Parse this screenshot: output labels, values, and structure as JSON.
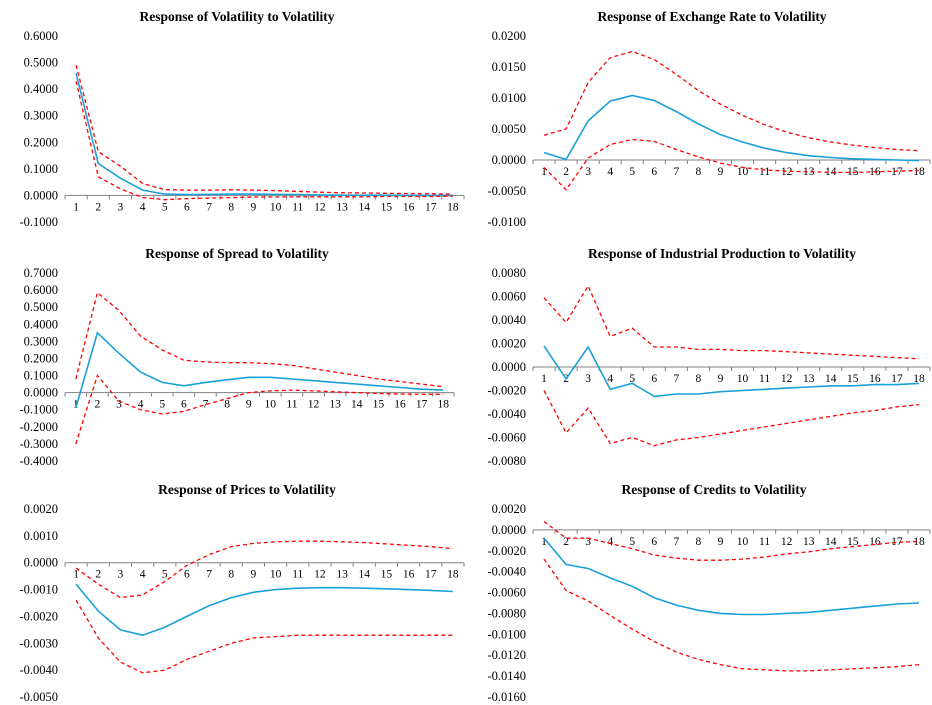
{
  "colors": {
    "response": "#1aa0d8",
    "band": "#ff0000",
    "axis": "#808080"
  },
  "chart_data": [
    {
      "type": "line",
      "title": "Response of  Volatility  to Volatility",
      "x": [
        1,
        2,
        3,
        4,
        5,
        6,
        7,
        8,
        9,
        10,
        11,
        12,
        13,
        14,
        15,
        16,
        17,
        18
      ],
      "ylim": [
        -0.1,
        0.6
      ],
      "yticks": [
        -0.1,
        0,
        0.1,
        0.2,
        0.3,
        0.4,
        0.5,
        0.6
      ],
      "ytick_labels": [
        "-0.1000",
        "0.0000",
        "0.1000",
        "0.2000",
        "0.3000",
        "0.4000",
        "0.5000",
        "0.6000"
      ],
      "legend": "none",
      "series": [
        {
          "role": "response",
          "values": [
            0.46,
            0.12,
            0.065,
            0.02,
            0.005,
            0.003,
            0.004,
            0.005,
            0.005,
            0.004,
            0.003,
            0.002,
            0.001,
            0.001,
            0.001,
            0.0,
            0.0,
            0.0
          ]
        },
        {
          "role": "upper",
          "values": [
            0.49,
            0.165,
            0.11,
            0.045,
            0.022,
            0.02,
            0.02,
            0.021,
            0.02,
            0.018,
            0.015,
            0.012,
            0.01,
            0.009,
            0.008,
            0.007,
            0.006,
            0.005
          ]
        },
        {
          "role": "lower",
          "values": [
            0.43,
            0.07,
            0.025,
            -0.008,
            -0.016,
            -0.012,
            -0.01,
            -0.008,
            -0.006,
            -0.006,
            -0.005,
            -0.005,
            -0.005,
            -0.005,
            -0.004,
            -0.004,
            -0.004,
            -0.003
          ]
        }
      ]
    },
    {
      "type": "line",
      "title": "Response of  Exchange Rate  to Volatility",
      "x": [
        1,
        2,
        3,
        4,
        5,
        6,
        7,
        8,
        9,
        10,
        11,
        12,
        13,
        14,
        15,
        16,
        17,
        18
      ],
      "ylim": [
        -0.01,
        0.02
      ],
      "yticks": [
        -0.01,
        -0.005,
        0,
        0.005,
        0.01,
        0.015,
        0.02
      ],
      "ytick_labels": [
        "-0.0100",
        "-0.0050",
        "0.0000",
        "0.0050",
        "0.0100",
        "0.0150",
        "0.0200"
      ],
      "legend": "none",
      "series": [
        {
          "role": "response",
          "values": [
            0.0012,
            0.0001,
            0.0063,
            0.0095,
            0.0104,
            0.0096,
            0.0078,
            0.0058,
            0.0041,
            0.0029,
            0.0019,
            0.0012,
            0.0007,
            0.0004,
            0.0002,
            0.0001,
            0.0,
            -0.0001
          ]
        },
        {
          "role": "upper",
          "values": [
            0.004,
            0.005,
            0.0125,
            0.0165,
            0.0175,
            0.0162,
            0.0138,
            0.0112,
            0.009,
            0.0072,
            0.0057,
            0.0045,
            0.0036,
            0.0029,
            0.0024,
            0.002,
            0.0017,
            0.0015
          ]
        },
        {
          "role": "lower",
          "values": [
            -0.0012,
            -0.0048,
            0.0003,
            0.0025,
            0.0033,
            0.003,
            0.0017,
            0.0005,
            -0.0005,
            -0.0012,
            -0.0016,
            -0.0018,
            -0.0019,
            -0.002,
            -0.002,
            -0.0019,
            -0.0018,
            -0.0017
          ]
        }
      ]
    },
    {
      "type": "line",
      "title": "Response of  Spread to  Volatility",
      "x": [
        1,
        2,
        3,
        4,
        5,
        6,
        7,
        8,
        9,
        10,
        11,
        12,
        13,
        14,
        15,
        16,
        17,
        18
      ],
      "ylim": [
        -0.4,
        0.7
      ],
      "yticks": [
        -0.4,
        -0.3,
        -0.2,
        -0.1,
        0,
        0.1,
        0.2,
        0.3,
        0.4,
        0.5,
        0.6,
        0.7
      ],
      "ytick_labels": [
        "-0.4000",
        "-0.3000",
        "-0.2000",
        "-0.1000",
        "0.0000",
        "0.1000",
        "0.2000",
        "0.3000",
        "0.4000",
        "0.5000",
        "0.6000",
        "0.7000"
      ],
      "legend": "none",
      "series": [
        {
          "role": "response",
          "values": [
            -0.09,
            0.35,
            0.23,
            0.12,
            0.06,
            0.04,
            0.06,
            0.075,
            0.09,
            0.09,
            0.08,
            0.07,
            0.06,
            0.05,
            0.04,
            0.03,
            0.02,
            0.015
          ]
        },
        {
          "role": "upper",
          "values": [
            0.08,
            0.585,
            0.48,
            0.33,
            0.25,
            0.19,
            0.18,
            0.175,
            0.175,
            0.17,
            0.16,
            0.14,
            0.12,
            0.1,
            0.08,
            0.065,
            0.05,
            0.035
          ]
        },
        {
          "role": "lower",
          "values": [
            -0.3,
            0.1,
            -0.05,
            -0.1,
            -0.125,
            -0.11,
            -0.07,
            -0.035,
            0.0,
            0.01,
            0.015,
            0.01,
            0.005,
            0.0,
            -0.005,
            -0.008,
            -0.01,
            -0.01
          ]
        }
      ]
    },
    {
      "type": "line",
      "title": "Response of  Industrial Production to Volatility",
      "x": [
        1,
        2,
        3,
        4,
        5,
        6,
        7,
        8,
        9,
        10,
        11,
        12,
        13,
        14,
        15,
        16,
        17,
        18
      ],
      "ylim": [
        -0.008,
        0.008
      ],
      "yticks": [
        -0.008,
        -0.006,
        -0.004,
        -0.002,
        0,
        0.002,
        0.004,
        0.006,
        0.008
      ],
      "ytick_labels": [
        "-0.0080",
        "-0.0060",
        "-0.0040",
        "-0.0020",
        "0.0000",
        "0.0020",
        "0.0040",
        "0.0060",
        "0.0080"
      ],
      "legend": "none",
      "series": [
        {
          "role": "response",
          "values": [
            0.0018,
            -0.001,
            0.0017,
            -0.0019,
            -0.0014,
            -0.0025,
            -0.0023,
            -0.0023,
            -0.0021,
            -0.002,
            -0.0019,
            -0.0018,
            -0.0017,
            -0.0016,
            -0.0016,
            -0.0015,
            -0.0015,
            -0.0014
          ]
        },
        {
          "role": "upper",
          "values": [
            0.0059,
            0.0038,
            0.0069,
            0.0026,
            0.0033,
            0.0017,
            0.0017,
            0.0015,
            0.0015,
            0.0014,
            0.0014,
            0.0013,
            0.0012,
            0.0011,
            0.001,
            0.0009,
            0.0008,
            0.0007
          ]
        },
        {
          "role": "lower",
          "values": [
            -0.002,
            -0.0056,
            -0.0035,
            -0.0065,
            -0.006,
            -0.0067,
            -0.0062,
            -0.006,
            -0.0057,
            -0.0054,
            -0.0051,
            -0.0048,
            -0.0045,
            -0.0042,
            -0.0039,
            -0.0037,
            -0.0034,
            -0.0032
          ]
        }
      ]
    },
    {
      "type": "line",
      "title": "Response of  Prices to Volatility",
      "x": [
        1,
        2,
        3,
        4,
        5,
        6,
        7,
        8,
        9,
        10,
        11,
        12,
        13,
        14,
        15,
        16,
        17,
        18
      ],
      "ylim": [
        -0.005,
        0.002
      ],
      "yticks": [
        -0.005,
        -0.004,
        -0.003,
        -0.002,
        -0.001,
        0,
        0.001,
        0.002
      ],
      "ytick_labels": [
        "-0.0050",
        "-0.0040",
        "-0.0030",
        "-0.0020",
        "-0.0010",
        "0.0000",
        "0.0010",
        "0.0020"
      ],
      "legend": "none",
      "series": [
        {
          "role": "response",
          "values": [
            -0.0008,
            -0.0018,
            -0.0025,
            -0.0027,
            -0.0024,
            -0.002,
            -0.0016,
            -0.0013,
            -0.0011,
            -0.001,
            -0.00095,
            -0.00093,
            -0.00093,
            -0.00095,
            -0.00097,
            -0.001,
            -0.00103,
            -0.00107
          ]
        },
        {
          "role": "upper",
          "values": [
            -0.0002,
            -0.0008,
            -0.0013,
            -0.0012,
            -0.0007,
            -0.0001,
            0.0003,
            0.0006,
            0.00072,
            0.00078,
            0.0008,
            0.0008,
            0.00078,
            0.00075,
            0.0007,
            0.00065,
            0.0006,
            0.00052
          ]
        },
        {
          "role": "lower",
          "values": [
            -0.0014,
            -0.0028,
            -0.0037,
            -0.0041,
            -0.004,
            -0.0036,
            -0.0033,
            -0.003,
            -0.0028,
            -0.00275,
            -0.0027,
            -0.0027,
            -0.0027,
            -0.0027,
            -0.0027,
            -0.0027,
            -0.0027,
            -0.0027
          ]
        }
      ]
    },
    {
      "type": "line",
      "title": "Response of  Credits to Volatility",
      "x": [
        1,
        2,
        3,
        4,
        5,
        6,
        7,
        8,
        9,
        10,
        11,
        12,
        13,
        14,
        15,
        16,
        17,
        18
      ],
      "ylim": [
        -0.016,
        0.002
      ],
      "yticks": [
        -0.016,
        -0.014,
        -0.012,
        -0.01,
        -0.008,
        -0.006,
        -0.004,
        -0.002,
        0,
        0.002
      ],
      "ytick_labels": [
        "-0.0160",
        "-0.0140",
        "-0.0120",
        "-0.0100",
        "-0.0080",
        "-0.0060",
        "-0.0040",
        "-0.0020",
        "0.0000",
        "0.0020"
      ],
      "legend": "none",
      "series": [
        {
          "role": "response",
          "values": [
            -0.0008,
            -0.0033,
            -0.0037,
            -0.0046,
            -0.0054,
            -0.0065,
            -0.0072,
            -0.0077,
            -0.008,
            -0.0081,
            -0.0081,
            -0.008,
            -0.0079,
            -0.0077,
            -0.0075,
            -0.0073,
            -0.0071,
            -0.007
          ]
        },
        {
          "role": "upper",
          "values": [
            0.0008,
            -0.0008,
            -0.0008,
            -0.0013,
            -0.0018,
            -0.0024,
            -0.0027,
            -0.0029,
            -0.0029,
            -0.0028,
            -0.0026,
            -0.0023,
            -0.0021,
            -0.0018,
            -0.0016,
            -0.0014,
            -0.0012,
            -0.0011
          ]
        },
        {
          "role": "lower",
          "values": [
            -0.0028,
            -0.0058,
            -0.0068,
            -0.0082,
            -0.0095,
            -0.0107,
            -0.0117,
            -0.0124,
            -0.0129,
            -0.0133,
            -0.0134,
            -0.0135,
            -0.0135,
            -0.0134,
            -0.0133,
            -0.0132,
            -0.0131,
            -0.0129
          ]
        }
      ]
    }
  ]
}
